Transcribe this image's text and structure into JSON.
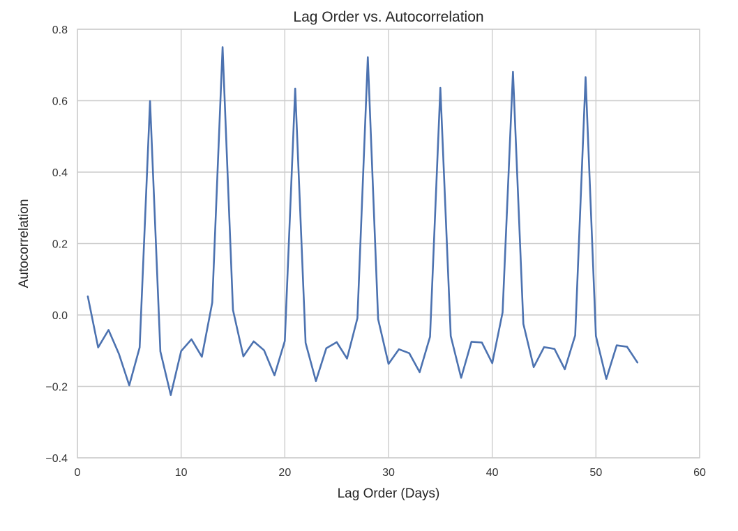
{
  "chart_data": {
    "type": "line",
    "title": "Lag Order vs. Autocorrelation",
    "xlabel": "Lag Order (Days)",
    "ylabel": "Autocorrelation",
    "xlim": [
      0,
      60
    ],
    "ylim": [
      -0.4,
      0.8
    ],
    "xticks": [
      0,
      10,
      20,
      30,
      40,
      50,
      60
    ],
    "xtick_labels": [
      "0",
      "10",
      "20",
      "30",
      "40",
      "50",
      "60"
    ],
    "yticks": [
      -0.4,
      -0.2,
      0.0,
      0.2,
      0.4,
      0.6,
      0.8
    ],
    "ytick_labels": [
      "−0.4",
      "−0.2",
      "0.0",
      "0.2",
      "0.4",
      "0.6",
      "0.8"
    ],
    "grid": true,
    "series": [
      {
        "color": "#4c72b0",
        "x": [
          1,
          2,
          3,
          4,
          5,
          6,
          7,
          8,
          9,
          10,
          11,
          12,
          13,
          14,
          15,
          16,
          17,
          18,
          19,
          20,
          21,
          22,
          23,
          24,
          25,
          26,
          27,
          28,
          29,
          30,
          31,
          32,
          33,
          34,
          35,
          36,
          37,
          38,
          39,
          40,
          41,
          42,
          43,
          44,
          45,
          46,
          47,
          48,
          49,
          50,
          51,
          52,
          53,
          54
        ],
        "y": [
          0.052,
          -0.091,
          -0.042,
          -0.109,
          -0.197,
          -0.091,
          0.599,
          -0.102,
          -0.224,
          -0.101,
          -0.068,
          -0.117,
          0.035,
          0.75,
          0.014,
          -0.116,
          -0.074,
          -0.099,
          -0.169,
          -0.073,
          0.634,
          -0.078,
          -0.185,
          -0.093,
          -0.076,
          -0.122,
          -0.009,
          0.722,
          -0.012,
          -0.137,
          -0.096,
          -0.107,
          -0.16,
          -0.061,
          0.636,
          -0.059,
          -0.176,
          -0.075,
          -0.077,
          -0.135,
          0.007,
          0.681,
          -0.025,
          -0.146,
          -0.09,
          -0.095,
          -0.152,
          -0.057,
          0.666,
          -0.059,
          -0.179,
          -0.085,
          -0.089,
          -0.133
        ]
      }
    ]
  }
}
